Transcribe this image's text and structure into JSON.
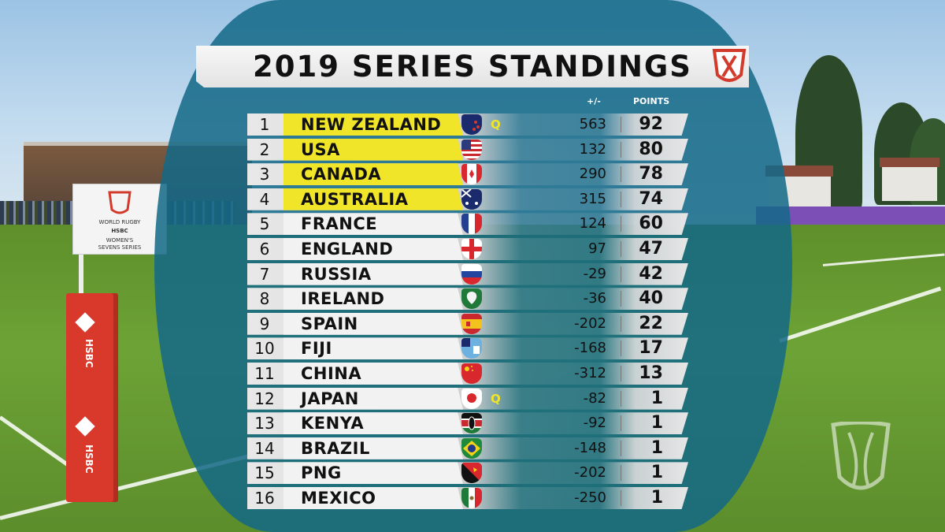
{
  "header": {
    "title": "2019 SERIES STANDINGS",
    "col_diff": "+/-",
    "col_points": "POINTS"
  },
  "standings": [
    {
      "pos": "1",
      "team": "NEW ZEALAND",
      "q": "Q",
      "diff": "563",
      "points": "92",
      "flag": "new-zealand-flag-icon"
    },
    {
      "pos": "2",
      "team": "USA",
      "q": "",
      "diff": "132",
      "points": "80",
      "flag": "usa-flag-icon"
    },
    {
      "pos": "3",
      "team": "CANADA",
      "q": "",
      "diff": "290",
      "points": "78",
      "flag": "canada-flag-icon"
    },
    {
      "pos": "4",
      "team": "AUSTRALIA",
      "q": "",
      "diff": "315",
      "points": "74",
      "flag": "australia-flag-icon"
    },
    {
      "pos": "5",
      "team": "FRANCE",
      "q": "",
      "diff": "124",
      "points": "60",
      "flag": "france-flag-icon"
    },
    {
      "pos": "6",
      "team": "ENGLAND",
      "q": "",
      "diff": "97",
      "points": "47",
      "flag": "england-flag-icon"
    },
    {
      "pos": "7",
      "team": "RUSSIA",
      "q": "",
      "diff": "-29",
      "points": "42",
      "flag": "russia-flag-icon"
    },
    {
      "pos": "8",
      "team": "IRELAND",
      "q": "",
      "diff": "-36",
      "points": "40",
      "flag": "ireland-flag-icon"
    },
    {
      "pos": "9",
      "team": "SPAIN",
      "q": "",
      "diff": "-202",
      "points": "22",
      "flag": "spain-flag-icon"
    },
    {
      "pos": "10",
      "team": "FIJI",
      "q": "",
      "diff": "-168",
      "points": "17",
      "flag": "fiji-flag-icon"
    },
    {
      "pos": "11",
      "team": "CHINA",
      "q": "",
      "diff": "-312",
      "points": "13",
      "flag": "china-flag-icon"
    },
    {
      "pos": "12",
      "team": "JAPAN",
      "q": "Q",
      "diff": "-82",
      "points": "1",
      "flag": "japan-flag-icon"
    },
    {
      "pos": "13",
      "team": "KENYA",
      "q": "",
      "diff": "-92",
      "points": "1",
      "flag": "kenya-flag-icon"
    },
    {
      "pos": "14",
      "team": "BRAZIL",
      "q": "",
      "diff": "-148",
      "points": "1",
      "flag": "brazil-flag-icon"
    },
    {
      "pos": "15",
      "team": "PNG",
      "q": "",
      "diff": "-202",
      "points": "1",
      "flag": "png-flag-icon"
    },
    {
      "pos": "16",
      "team": "MEXICO",
      "q": "",
      "diff": "-250",
      "points": "1",
      "flag": "mexico-flag-icon"
    }
  ],
  "highlighted_rows": 4,
  "colors": {
    "highlight": "#f1e52a",
    "overlay": "#14698a",
    "qualifier": "#f1e52a"
  },
  "background": {
    "sponsor_text": "HSBC",
    "corner_flag_lines": [
      "WORLD RUGBY",
      "HSBC",
      "WOMEN'S",
      "SEVENS SERIES"
    ]
  }
}
